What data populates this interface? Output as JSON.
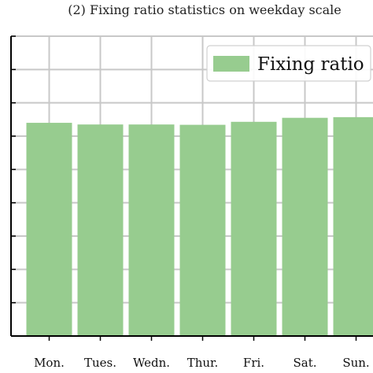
{
  "chart_data": {
    "type": "bar",
    "title": "(2) Fixing ratio statistics on weekday scale",
    "categories": [
      "Mon.",
      "Tues.",
      "Wedn.",
      "Thur.",
      "Fri.",
      "Sat.",
      "Sun."
    ],
    "series": [
      {
        "name": "Fixing ratio",
        "values": [
          0.64,
          0.635,
          0.635,
          0.634,
          0.643,
          0.655,
          0.657
        ]
      }
    ],
    "xlabel": "",
    "ylabel": "",
    "ylim": [
      0,
      0.9
    ],
    "yticks": [
      0,
      0.1,
      0.2,
      0.3,
      0.4,
      0.5,
      0.6,
      0.7,
      0.8,
      0.9
    ],
    "grid": true,
    "legend_position": "top-right",
    "colors": {
      "bar": "#97cc8f",
      "grid": "#c8c8c8",
      "axis": "#000000"
    }
  }
}
